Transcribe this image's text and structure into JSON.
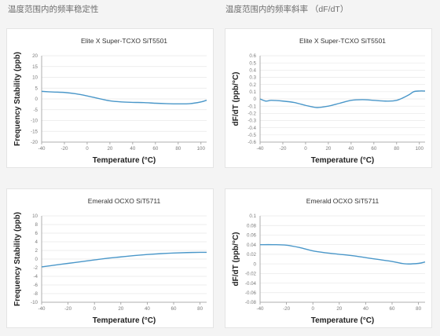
{
  "sections": {
    "left_title": "温度范围内的频率稳定性",
    "right_title": "温度范围内的频率斜率 （dF/dT）"
  },
  "colors": {
    "curve": "#4a97c9"
  },
  "chart_data": [
    {
      "type": "line",
      "title": "Elite X Super-TCXO SiT5501",
      "xlabel": "Temperature (°C)",
      "ylabel": "Frequency Stability (ppb)",
      "xlim": [
        -40,
        105
      ],
      "ylim": [
        -20,
        20
      ],
      "xticks": [
        -40,
        -20,
        0,
        20,
        40,
        60,
        80,
        100
      ],
      "yticks": [
        -20,
        -15,
        -10,
        -5,
        0,
        5,
        10,
        15,
        20
      ],
      "x": [
        -40,
        -30,
        -20,
        -10,
        0,
        10,
        20,
        30,
        40,
        50,
        60,
        70,
        80,
        90,
        100,
        105
      ],
      "y": [
        3.5,
        3.2,
        3.0,
        2.4,
        1.4,
        0.2,
        -0.9,
        -1.4,
        -1.6,
        -1.7,
        -2.0,
        -2.2,
        -2.3,
        -2.2,
        -1.4,
        -0.6
      ]
    },
    {
      "type": "line",
      "title": "Elite X Super-TCXO SiT5501",
      "xlabel": "Temperature (°C)",
      "ylabel": "dF/dT (ppb/°C)",
      "xlim": [
        -40,
        105
      ],
      "ylim": [
        -0.6,
        0.6
      ],
      "xticks": [
        -40,
        -20,
        0,
        20,
        40,
        60,
        80,
        100
      ],
      "yticks": [
        -0.6,
        -0.5,
        -0.4,
        -0.3,
        -0.2,
        -0.1,
        0,
        0.1,
        0.2,
        0.3,
        0.4,
        0.5,
        0.6
      ],
      "x": [
        -40,
        -35,
        -30,
        -20,
        -10,
        0,
        10,
        20,
        30,
        40,
        50,
        60,
        70,
        80,
        90,
        95,
        100,
        105
      ],
      "y": [
        0.0,
        -0.03,
        -0.02,
        -0.03,
        -0.05,
        -0.09,
        -0.12,
        -0.1,
        -0.06,
        -0.02,
        -0.01,
        -0.02,
        -0.03,
        -0.02,
        0.05,
        0.1,
        0.11,
        0.11
      ]
    },
    {
      "type": "line",
      "title": "Emerald OCXO SiT5711",
      "xlabel": "Temperature (°C)",
      "ylabel": "Frequency Stability (ppb)",
      "xlim": [
        -40,
        85
      ],
      "ylim": [
        -10,
        10
      ],
      "xticks": [
        -40,
        -20,
        0,
        20,
        40,
        60,
        80
      ],
      "yticks": [
        -10,
        -8,
        -6,
        -4,
        -2,
        0,
        2,
        4,
        6,
        8,
        10
      ],
      "x": [
        -40,
        -30,
        -20,
        -10,
        0,
        10,
        20,
        30,
        40,
        50,
        60,
        70,
        80,
        85
      ],
      "y": [
        -1.8,
        -1.4,
        -1.0,
        -0.6,
        -0.2,
        0.2,
        0.5,
        0.8,
        1.05,
        1.25,
        1.4,
        1.5,
        1.55,
        1.55
      ]
    },
    {
      "type": "line",
      "title": "Emerald OCXO SiT5711",
      "xlabel": "Temperature (°C)",
      "ylabel": "dF/dT (ppb/°C)",
      "xlim": [
        -40,
        85
      ],
      "ylim": [
        -0.08,
        0.1
      ],
      "xticks": [
        -40,
        -20,
        0,
        20,
        40,
        60,
        80
      ],
      "yticks": [
        -0.08,
        -0.06,
        -0.04,
        -0.02,
        0,
        0.02,
        0.04,
        0.06,
        0.08,
        0.1
      ],
      "x": [
        -40,
        -30,
        -20,
        -10,
        0,
        10,
        20,
        30,
        40,
        50,
        60,
        70,
        80,
        85
      ],
      "y": [
        0.04,
        0.04,
        0.039,
        0.034,
        0.027,
        0.023,
        0.02,
        0.017,
        0.013,
        0.009,
        0.005,
        0.0,
        0.001,
        0.004
      ]
    }
  ]
}
